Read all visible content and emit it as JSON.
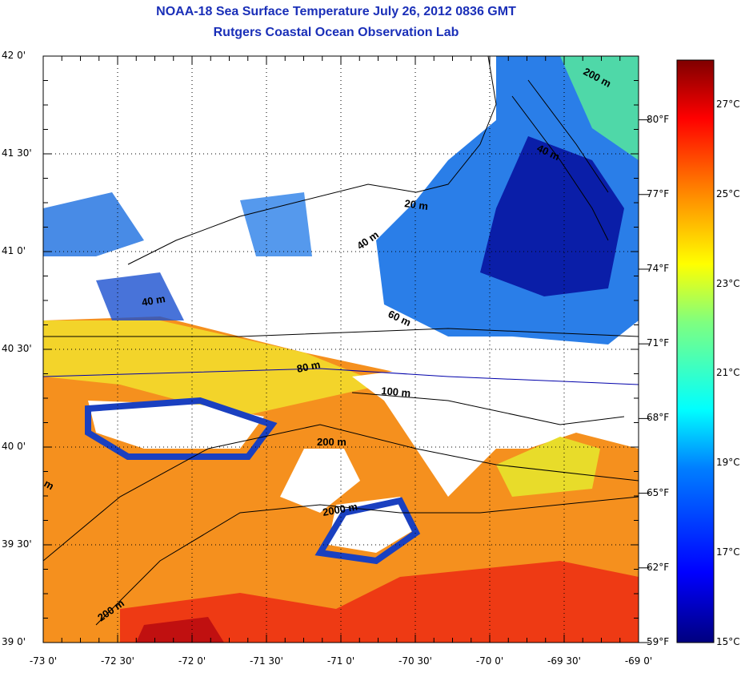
{
  "title": "NOAA-18 Sea Surface Temperature July 26, 2012 0836 GMT",
  "subtitle": "Rutgers Coastal Ocean Observation Lab",
  "lat_labels": [
    "42 0'",
    "41 30'",
    "41 0'",
    "40 30'",
    "40 0'",
    "39 30'",
    "39 0'"
  ],
  "lon_labels": [
    "-73 0'",
    "-72 30'",
    "-72 0'",
    "-71 30'",
    "-71 0'",
    "-70 30'",
    "-70 0'",
    "-69 30'",
    "-69 0'"
  ],
  "colorbar": {
    "fahrenheit": [
      "80°F",
      "77°F",
      "74°F",
      "71°F",
      "68°F",
      "65°F",
      "62°F",
      "59°F"
    ],
    "celsius": [
      "27°C",
      "25°C",
      "23°C",
      "21°C",
      "19°C",
      "17°C",
      "15°C"
    ],
    "range_c": [
      15,
      28
    ],
    "colors": [
      "#00007f",
      "#0000ff",
      "#007fff",
      "#00ffff",
      "#7fff7f",
      "#ffff00",
      "#ff7f00",
      "#ff0000",
      "#7f0000"
    ]
  },
  "contours": {
    "c1": "200 m",
    "c2": "40 m",
    "c3": "20 m",
    "c4": "40 m",
    "c5": "40 m",
    "c6": "60 m",
    "c7": "80 m",
    "c8": "100 m",
    "c9": "200 m",
    "c10": "2000 m",
    "c11": "200 m",
    "c12": "m"
  }
}
